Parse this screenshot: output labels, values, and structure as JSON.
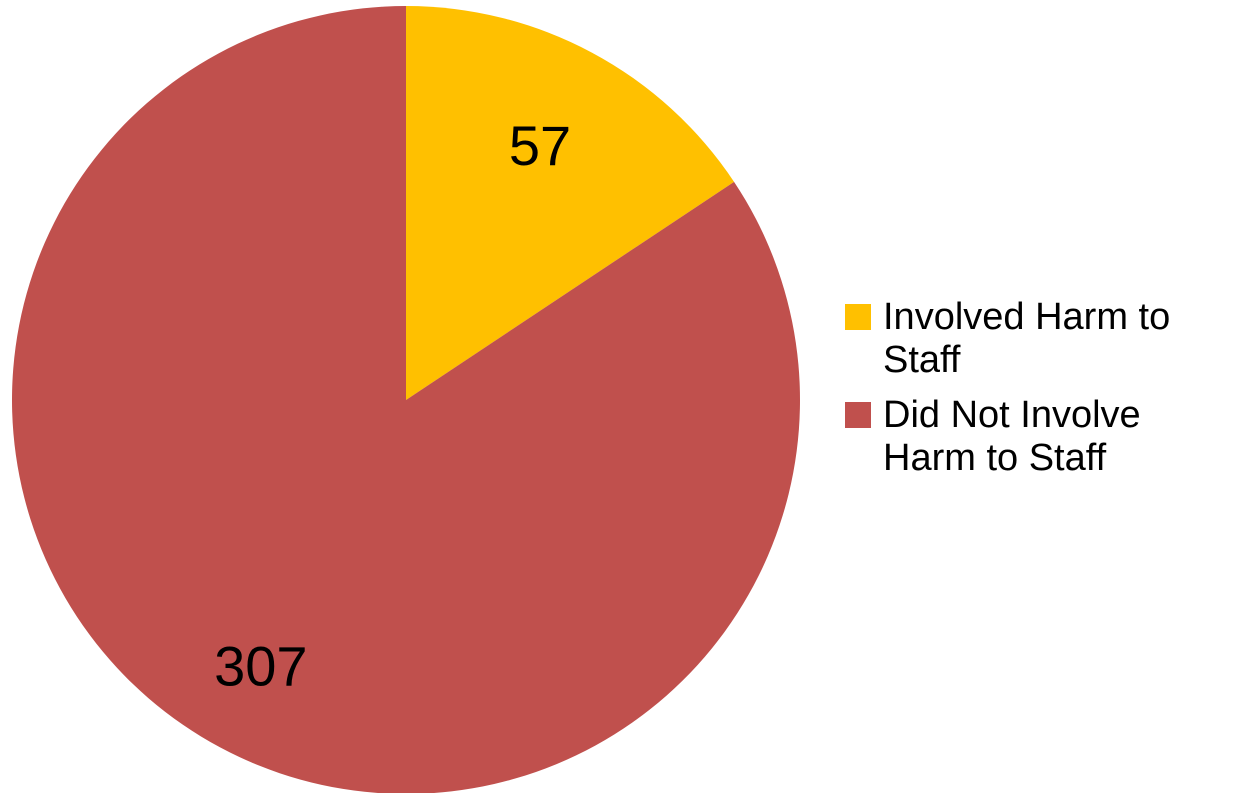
{
  "chart_data": {
    "type": "pie",
    "title": "",
    "start_angle_deg": 0,
    "direction": "clockwise",
    "slices": [
      {
        "label": "Involved Harm to Staff",
        "value": 57,
        "color": "#FFC000"
      },
      {
        "label": "Did Not Involve Harm to Staff",
        "value": 307,
        "color": "#C0504D"
      }
    ],
    "data_labels": [
      "57",
      "307"
    ],
    "legend_position": "right"
  }
}
